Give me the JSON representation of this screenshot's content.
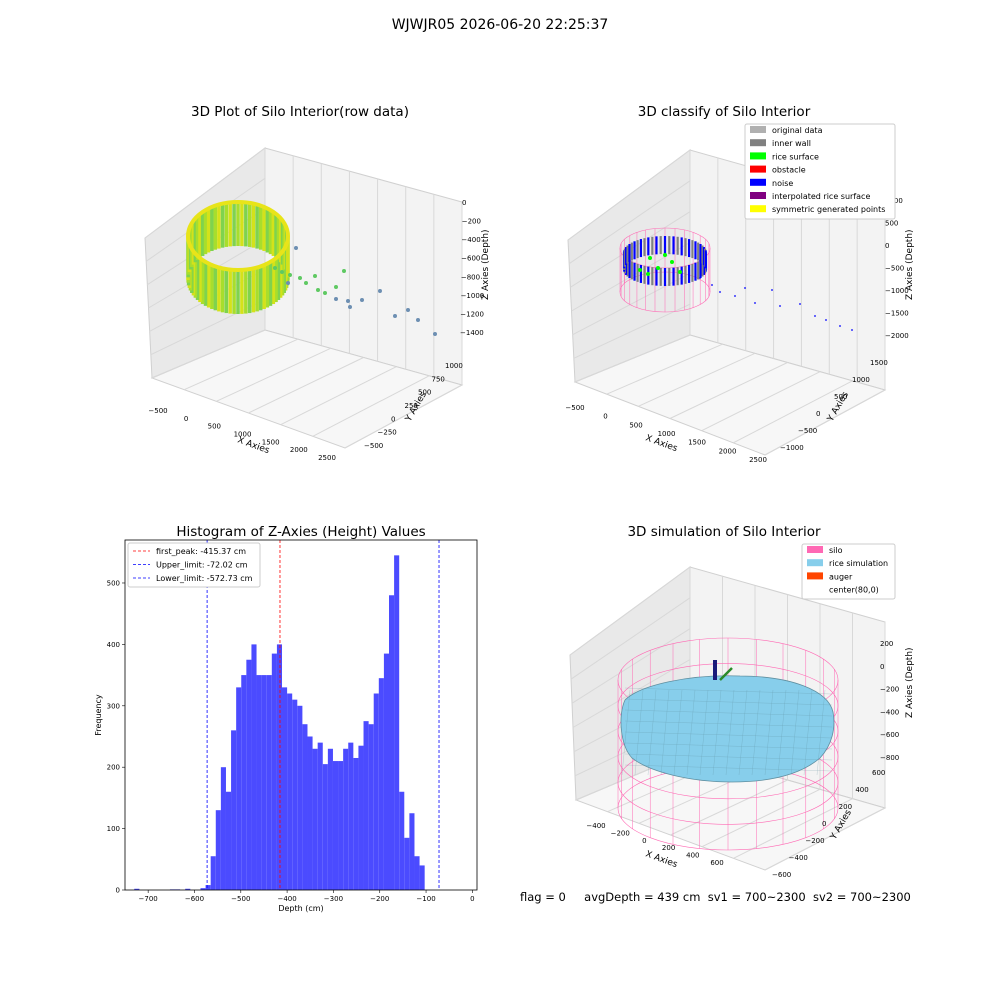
{
  "figure_title": "WJWJR05 2026-06-20 22:25:37",
  "footer": {
    "flag": "flag = 0",
    "avg_depth": "avgDepth = 439 cm",
    "sv1": "sv1 = 700~2300",
    "sv2": "sv2 = 700~2300"
  },
  "chart_data": [
    {
      "type": "scatter",
      "projection": "3d",
      "title": "3D Plot of Silo Interior(row data)",
      "xlabel": "X Axies",
      "ylabel": "Y Axies",
      "zlabel": "Z Axies (Depth)",
      "x_ticks": [
        "−500",
        "0",
        "500",
        "1000",
        "1500",
        "2000",
        "2500"
      ],
      "y_ticks": [
        "−500",
        "−250",
        "0",
        "250",
        "500",
        "750",
        "1000"
      ],
      "z_ticks": [
        "0",
        "−200",
        "−400",
        "−600",
        "−800",
        "−1000",
        "−1200",
        "−1400"
      ],
      "colormap": "viridis",
      "grid": true
    },
    {
      "type": "scatter",
      "projection": "3d",
      "title": "3D classify of Silo Interior",
      "xlabel": "X Axies",
      "ylabel": "Y Axies",
      "zlabel": "Z Axies (Depth)",
      "x_ticks": [
        "−500",
        "0",
        "500",
        "1000",
        "1500",
        "2000",
        "2500"
      ],
      "y_ticks": [
        "−1000",
        "−500",
        "0",
        "500",
        "1000",
        "1500"
      ],
      "z_ticks": [
        "1000",
        "500",
        "0",
        "−500",
        "−1000",
        "−1500",
        "−2000"
      ],
      "legend_position": "upper-right",
      "legend": [
        {
          "label": "original data",
          "color": "#b0b0b0"
        },
        {
          "label": "inner wall",
          "color": "#808080"
        },
        {
          "label": "rice surface",
          "color": "#00ff00"
        },
        {
          "label": "obstacle",
          "color": "#ff0000"
        },
        {
          "label": "noise",
          "color": "#0000ff"
        },
        {
          "label": "interpolated rice surface",
          "color": "#800080"
        },
        {
          "label": "symmetric generated points",
          "color": "#ffff00"
        }
      ],
      "grid": true
    },
    {
      "type": "bar",
      "title": "Histogram of Z-Axies (Height) Values",
      "xlabel": "Depth (cm)",
      "ylabel": "Frequency",
      "xlim": [
        -750,
        10
      ],
      "ylim": [
        0,
        570
      ],
      "x_ticks": [
        -700,
        -600,
        -500,
        -400,
        -300,
        -200,
        -100,
        0
      ],
      "x_tick_labels": [
        "−700",
        "−600",
        "−500",
        "−400",
        "−300",
        "−200",
        "−100",
        "0"
      ],
      "y_ticks": [
        0,
        100,
        200,
        300,
        400,
        500
      ],
      "y_tick_labels": [
        "0",
        "100",
        "200",
        "300",
        "400",
        "500"
      ],
      "bar_color": "#4b4bff",
      "bin_width": 11,
      "bins": [
        {
          "x0": -730,
          "count": 2
        },
        {
          "x0": -653,
          "count": 1
        },
        {
          "x0": -642,
          "count": 1
        },
        {
          "x0": -620,
          "count": 2
        },
        {
          "x0": -587,
          "count": 3
        },
        {
          "x0": -576,
          "count": 8
        },
        {
          "x0": -565,
          "count": 55
        },
        {
          "x0": -554,
          "count": 130
        },
        {
          "x0": -543,
          "count": 200
        },
        {
          "x0": -532,
          "count": 160
        },
        {
          "x0": -521,
          "count": 260
        },
        {
          "x0": -510,
          "count": 330
        },
        {
          "x0": -499,
          "count": 350
        },
        {
          "x0": -488,
          "count": 375
        },
        {
          "x0": -477,
          "count": 400
        },
        {
          "x0": -466,
          "count": 350
        },
        {
          "x0": -455,
          "count": 350
        },
        {
          "x0": -444,
          "count": 350
        },
        {
          "x0": -433,
          "count": 385
        },
        {
          "x0": -422,
          "count": 400
        },
        {
          "x0": -411,
          "count": 330
        },
        {
          "x0": -400,
          "count": 320
        },
        {
          "x0": -389,
          "count": 310
        },
        {
          "x0": -378,
          "count": 300
        },
        {
          "x0": -367,
          "count": 270
        },
        {
          "x0": -356,
          "count": 250
        },
        {
          "x0": -345,
          "count": 230
        },
        {
          "x0": -334,
          "count": 240
        },
        {
          "x0": -323,
          "count": 205
        },
        {
          "x0": -312,
          "count": 230
        },
        {
          "x0": -301,
          "count": 210
        },
        {
          "x0": -290,
          "count": 210
        },
        {
          "x0": -279,
          "count": 230
        },
        {
          "x0": -268,
          "count": 240
        },
        {
          "x0": -257,
          "count": 215
        },
        {
          "x0": -246,
          "count": 235
        },
        {
          "x0": -235,
          "count": 275
        },
        {
          "x0": -224,
          "count": 270
        },
        {
          "x0": -213,
          "count": 320
        },
        {
          "x0": -202,
          "count": 345
        },
        {
          "x0": -191,
          "count": 385
        },
        {
          "x0": -180,
          "count": 480
        },
        {
          "x0": -169,
          "count": 545
        },
        {
          "x0": -158,
          "count": 160
        },
        {
          "x0": -147,
          "count": 85
        },
        {
          "x0": -136,
          "count": 125
        },
        {
          "x0": -125,
          "count": 55
        },
        {
          "x0": -114,
          "count": 40
        }
      ],
      "vlines": [
        {
          "label": "first_peak: -415.37 cm",
          "x": -415.37,
          "color": "#ff0000"
        },
        {
          "label": "Upper_limit: -72.02 cm",
          "x": -72.02,
          "color": "#0000ff"
        },
        {
          "label": "Lower_limit: -572.73 cm",
          "x": -572.73,
          "color": "#0000ff"
        }
      ],
      "legend_position": "upper-left"
    },
    {
      "type": "surface",
      "projection": "3d",
      "title": "3D simulation of Silo Interior",
      "xlabel": "X Axies",
      "ylabel": "Y Axies",
      "zlabel": "Z Axies (Depth)",
      "x_ticks": [
        "−400",
        "−200",
        "0",
        "200",
        "400",
        "600"
      ],
      "y_ticks": [
        "−600",
        "−400",
        "−200",
        "0",
        "200",
        "400",
        "600"
      ],
      "z_ticks": [
        "200",
        "0",
        "−200",
        "−400",
        "−600",
        "−800"
      ],
      "legend_position": "upper-right",
      "legend": [
        {
          "label": "silo",
          "color": "#ff69b4"
        },
        {
          "label": "rice simulation",
          "color": "#87ceeb"
        },
        {
          "label": "auger",
          "color": "#ff4500"
        },
        {
          "label": "center(80,0)",
          "color": "none"
        }
      ],
      "grid": true
    }
  ]
}
